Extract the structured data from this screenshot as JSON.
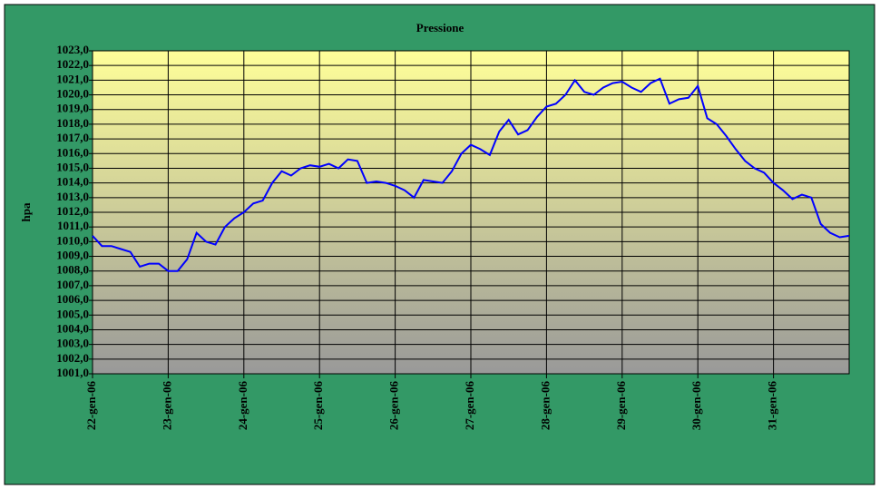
{
  "chart_data": {
    "type": "line",
    "title": "Pressione",
    "y_label": "hpa",
    "categories": [
      "22-gen-06",
      null,
      null,
      null,
      null,
      null,
      null,
      null,
      "23-gen-06",
      null,
      null,
      null,
      null,
      null,
      null,
      null,
      "24-gen-06",
      null,
      null,
      null,
      null,
      null,
      null,
      null,
      "25-gen-06",
      null,
      null,
      null,
      null,
      null,
      null,
      null,
      "26-gen-06",
      null,
      null,
      null,
      null,
      null,
      null,
      null,
      "27-gen-06",
      null,
      null,
      null,
      null,
      null,
      null,
      null,
      "28-gen-06",
      null,
      null,
      null,
      null,
      null,
      null,
      null,
      "29-gen-06",
      null,
      null,
      null,
      null,
      null,
      null,
      null,
      "30-gen-06",
      null,
      null,
      null,
      null,
      null,
      null,
      null,
      "31-gen-06",
      null,
      null,
      null,
      null,
      null,
      null,
      null,
      null
    ],
    "series": [
      {
        "color": "#0000ff",
        "values": [
          1010.4,
          1009.7,
          1009.7,
          1009.5,
          1009.3,
          1008.3,
          1008.5,
          1008.5,
          1008.0,
          1008.0,
          1008.8,
          1010.6,
          1010.0,
          1009.8,
          1011.0,
          1011.6,
          1012.0,
          1012.6,
          1012.8,
          1014.0,
          1014.8,
          1014.5,
          1015.0,
          1015.2,
          1015.1,
          1015.3,
          1015.0,
          1015.6,
          1015.5,
          1014.0,
          1014.1,
          1014.0,
          1013.8,
          1013.5,
          1013.0,
          1014.2,
          1014.1,
          1014.0,
          1014.8,
          1016.0,
          1016.6,
          1016.3,
          1015.9,
          1017.5,
          1018.3,
          1017.3,
          1017.6,
          1018.5,
          1019.2,
          1019.4,
          1020.0,
          1021.0,
          1020.2,
          1020.0,
          1020.5,
          1020.8,
          1020.9,
          1020.5,
          1020.2,
          1020.8,
          1021.1,
          1019.4,
          1019.7,
          1019.8,
          1020.6,
          1018.4,
          1018.0,
          1017.2,
          1016.3,
          1015.5,
          1015.0,
          1014.7,
          1014.0,
          1013.5,
          1012.9,
          1013.2,
          1013.0,
          1011.2,
          1010.6,
          1010.3,
          1010.4
        ]
      }
    ],
    "ylim": [
      1001,
      1023
    ],
    "yticks": [
      {
        "value": 1001,
        "label": "1001,0"
      },
      {
        "value": 1002,
        "label": "1002,0"
      },
      {
        "value": 1003,
        "label": "1003,0"
      },
      {
        "value": 1004,
        "label": "1004,0"
      },
      {
        "value": 1005,
        "label": "1005,0"
      },
      {
        "value": 1006,
        "label": "1006,0"
      },
      {
        "value": 1007,
        "label": "1007,0"
      },
      {
        "value": 1008,
        "label": "1008,0"
      },
      {
        "value": 1009,
        "label": "1009,0"
      },
      {
        "value": 1010,
        "label": "1010,0"
      },
      {
        "value": 1011,
        "label": "1011,0"
      },
      {
        "value": 1012,
        "label": "1012,0"
      },
      {
        "value": 1013,
        "label": "1013,0"
      },
      {
        "value": 1014,
        "label": "1014,0"
      },
      {
        "value": 1015,
        "label": "1015,0"
      },
      {
        "value": 1016,
        "label": "1016,0"
      },
      {
        "value": 1017,
        "label": "1017,0"
      },
      {
        "value": 1018,
        "label": "1018,0"
      },
      {
        "value": 1019,
        "label": "1019,0"
      },
      {
        "value": 1020,
        "label": "1020,0"
      },
      {
        "value": 1021,
        "label": "1021,0"
      },
      {
        "value": 1022,
        "label": "1022,0"
      },
      {
        "value": 1023,
        "label": "1023,0"
      }
    ],
    "grid": true
  }
}
